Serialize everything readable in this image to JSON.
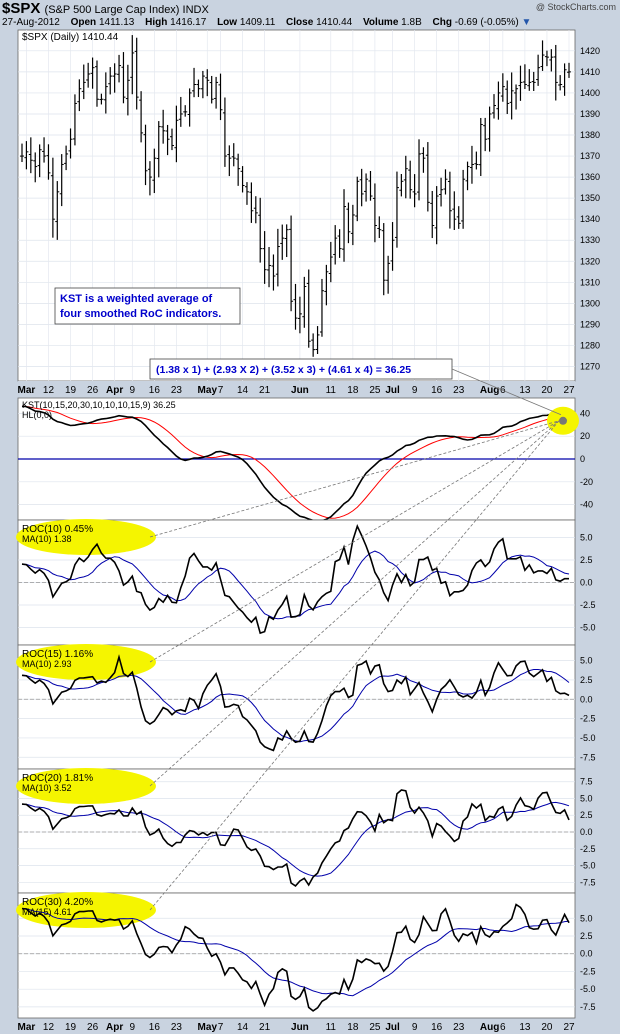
{
  "header": {
    "symbol": "$SPX",
    "name": "(S&P 500 Large Cap Index) INDX",
    "watermark": "@ StockCharts.com",
    "date": "27-Aug-2012",
    "open_label": "Open",
    "open": "1411.13",
    "high_label": "High",
    "high": "1416.17",
    "low_label": "Low",
    "low": "1409.11",
    "close_label": "Close",
    "close": "1410.44",
    "volume_label": "Volume",
    "volume": "1.8B",
    "chg_label": "Chg",
    "chg": "-0.69 (-0.05%)",
    "arrow": "▼"
  },
  "price_panel": {
    "label": "$SPX (Daily) 1410.44",
    "yticks": [
      1270,
      1280,
      1290,
      1300,
      1310,
      1320,
      1330,
      1340,
      1350,
      1360,
      1370,
      1380,
      1390,
      1400,
      1410,
      1420
    ],
    "annotation_lines": [
      "KST is a weighted average of",
      "four smoothed RoC indicators."
    ],
    "formula": "(1.38 x 1) + (2.93 X 2) + (3.52 x 3) + (4.61 x 4) = 36.25"
  },
  "kst_panel": {
    "label1": "KST(10,15,20,30,10,10,10,15,9) 36.25",
    "label2": "HL(0,0)",
    "yticks": [
      "40",
      "20",
      "0",
      "-20",
      "-40"
    ]
  },
  "roc_panels": [
    {
      "label1": "ROC(10) 0.45%",
      "label2": "MA(10) 1.38",
      "yticks": [
        "5.0",
        "2.5",
        "0.0",
        "-2.5",
        "-5.0"
      ]
    },
    {
      "label1": "ROC(15) 1.16%",
      "label2": "MA(10) 2.93",
      "yticks": [
        "5.0",
        "2.5",
        "0.0",
        "-2.5",
        "-5.0",
        "-7.5"
      ]
    },
    {
      "label1": "ROC(20) 1.81%",
      "label2": "MA(10) 3.52",
      "yticks": [
        "7.5",
        "5.0",
        "2.5",
        "0.0",
        "-2.5",
        "-5.0",
        "-7.5"
      ]
    },
    {
      "label1": "ROC(30) 4.20%",
      "label2": "MA(15) 4.61",
      "yticks": [
        "5.0",
        "2.5",
        "0.0",
        "-2.5",
        "-5.0",
        "-7.5"
      ]
    }
  ],
  "x_axis_labels": [
    {
      "t": "Mar",
      "b": true,
      "i": 1
    },
    {
      "t": "12",
      "i": 6
    },
    {
      "t": "19",
      "i": 11
    },
    {
      "t": "26",
      "i": 16
    },
    {
      "t": "Apr",
      "b": true,
      "i": 21
    },
    {
      "t": "9",
      "i": 25
    },
    {
      "t": "16",
      "i": 30
    },
    {
      "t": "23",
      "i": 35
    },
    {
      "t": "May",
      "b": true,
      "i": 42
    },
    {
      "t": "7",
      "i": 45
    },
    {
      "t": "14",
      "i": 50
    },
    {
      "t": "21",
      "i": 55
    },
    {
      "t": "Jun",
      "b": true,
      "i": 63
    },
    {
      "t": "11",
      "i": 70
    },
    {
      "t": "18",
      "i": 75
    },
    {
      "t": "25",
      "i": 80
    },
    {
      "t": "Jul",
      "b": true,
      "i": 84
    },
    {
      "t": "9",
      "i": 89
    },
    {
      "t": "16",
      "i": 94
    },
    {
      "t": "23",
      "i": 99
    },
    {
      "t": "Aug",
      "b": true,
      "i": 106
    },
    {
      "t": "6",
      "i": 109
    },
    {
      "t": "13",
      "i": 114
    },
    {
      "t": "20",
      "i": 119
    },
    {
      "t": "27",
      "i": 124
    }
  ],
  "colors": {
    "black": "#000000",
    "red": "#ff0000",
    "blue": "#0000aa",
    "highlight": "#f5f500",
    "annotation": "#0000cc"
  },
  "chart_data": {
    "type": "line",
    "title": "$SPX (Daily) 1410.44",
    "x_range": [
      "Mar 2012",
      "27-Aug-2012"
    ],
    "price": {
      "type": "ohlc",
      "ylim": [
        1265,
        1428
      ],
      "close": [
        1370,
        1372,
        1368,
        1365,
        1373,
        1370,
        1362,
        1340,
        1353,
        1366,
        1371,
        1378,
        1395,
        1402,
        1405,
        1409,
        1412,
        1397,
        1397,
        1403,
        1408,
        1409,
        1413,
        1398,
        1406,
        1419,
        1398,
        1381,
        1363,
        1360,
        1369,
        1384,
        1382,
        1378,
        1375,
        1387,
        1390,
        1391,
        1400,
        1404,
        1402,
        1408,
        1406,
        1397,
        1405,
        1392,
        1370,
        1369,
        1369,
        1364,
        1356,
        1353,
        1344,
        1343,
        1326,
        1316,
        1318,
        1313,
        1327,
        1331,
        1335,
        1301,
        1293,
        1295,
        1308,
        1282,
        1278,
        1285,
        1306,
        1315,
        1322,
        1331,
        1326,
        1346,
        1334,
        1342,
        1358,
        1352,
        1359,
        1351,
        1337,
        1335,
        1311,
        1319,
        1330,
        1355,
        1358,
        1364,
        1354,
        1352,
        1371,
        1369,
        1348,
        1337,
        1351,
        1354,
        1359,
        1344,
        1340,
        1338,
        1359,
        1365,
        1366,
        1366,
        1385,
        1378,
        1390,
        1394,
        1400,
        1403,
        1395,
        1401,
        1402,
        1405,
        1404,
        1405,
        1405,
        1412,
        1418,
        1417,
        1417,
        1405,
        1404,
        1411,
        1410
      ],
      "sma": false
    },
    "kst": {
      "ylim": [
        -50,
        50
      ],
      "zero": 0,
      "hl": 0
    },
    "roc10": {
      "ylim": [
        -6.5,
        6.5
      ]
    },
    "roc15": {
      "ylim": [
        -8.5,
        6.5
      ]
    },
    "roc20": {
      "ylim": [
        -8.5,
        8.8
      ]
    },
    "roc30": {
      "ylim": [
        -8.5,
        8.0
      ]
    }
  }
}
